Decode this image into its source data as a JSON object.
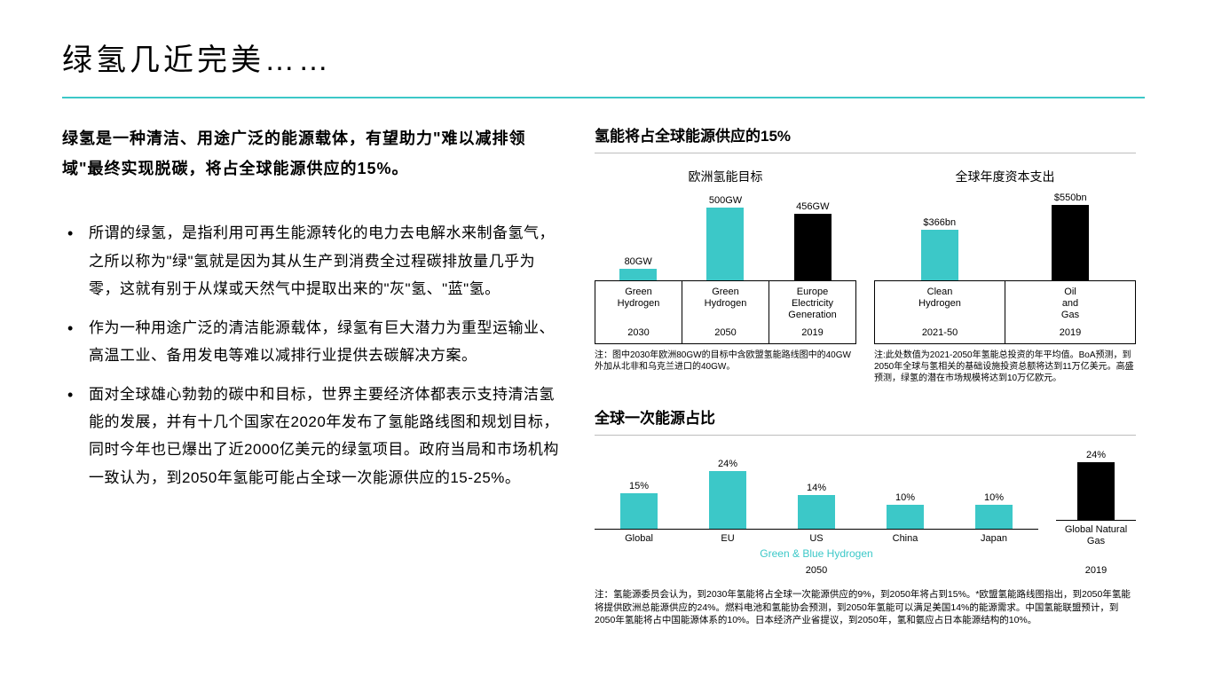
{
  "title": "绿氢几近完美……",
  "intro": "绿氢是一种清洁、用途广泛的能源载体，有望助力\"难以减排领域\"最终实现脱碳，将占全球能源供应的15%。",
  "bullets": [
    "所谓的绿氢，是指利用可再生能源转化的电力去电解水来制备氢气，之所以称为\"绿\"氢就是因为其从生产到消费全过程碳排放量几乎为零，这就有别于从煤或天然气中提取出来的\"灰\"氢、\"蓝\"氢。",
    "作为一种用途广泛的清洁能源载体，绿氢有巨大潜力为重型运输业、高温工业、备用发电等难以减排行业提供去碳解决方案。",
    "面对全球雄心勃勃的碳中和目标，世界主要经济体都表示支持清洁氢能的发展，并有十几个国家在2020年发布了氢能路线图和规划目标，同时今年也已爆出了近2000亿美元的绿氢项目。政府当局和市场机构一致认为，到2050年氢能可能占全球一次能源供应的15-25%。"
  ],
  "section1": {
    "heading": "氢能将占全球能源供应的15%"
  },
  "chart1": {
    "title": "欧洲氢能目标",
    "items": [
      {
        "label": "80GW",
        "value": 80,
        "color": "#3cc8c8",
        "cat1": "Green Hydrogen",
        "cat2": "2030"
      },
      {
        "label": "500GW",
        "value": 500,
        "color": "#3cc8c8",
        "cat1": "Green Hydrogen",
        "cat2": "2050"
      },
      {
        "label": "456GW",
        "value": 456,
        "color": "#000000",
        "cat1": "Europe Electricity Generation",
        "cat2": "2019"
      }
    ],
    "max": 550,
    "note": "注：图中2030年欧洲80GW的目标中含欧盟氢能路线图中的40GW外加从北非和乌克兰进口的40GW。"
  },
  "chart2": {
    "title": "全球年度资本支出",
    "items": [
      {
        "label": "$366bn",
        "value": 366,
        "color": "#3cc8c8",
        "cat1": "Clean Hydrogen",
        "cat2": "2021-50"
      },
      {
        "label": "$550bn",
        "value": 550,
        "color": "#000000",
        "cat1": "Oil and Gas",
        "cat2": "2019"
      }
    ],
    "max": 580,
    "note": "注:此处数值为2021-2050年氢能总投资的年平均值。BoA预测，到2050年全球与氢相关的基础设施投资总额将达到11万亿美元。高盛预测，绿氢的潜在市场规模将达到10万亿欧元。"
  },
  "section2": {
    "heading": "全球一次能源占比"
  },
  "chart3": {
    "leftItems": [
      {
        "label": "15%",
        "value": 15,
        "color": "#3cc8c8",
        "cat": "Global"
      },
      {
        "label": "24%",
        "value": 24,
        "color": "#3cc8c8",
        "cat": "EU"
      },
      {
        "label": "14%",
        "value": 14,
        "color": "#3cc8c8",
        "cat": "US"
      },
      {
        "label": "10%",
        "value": 10,
        "color": "#3cc8c8",
        "cat": "China"
      },
      {
        "label": "10%",
        "value": 10,
        "color": "#3cc8c8",
        "cat": "Japan"
      }
    ],
    "rightItem": {
      "label": "24%",
      "value": 24,
      "color": "#000000",
      "cat": "Global Natural Gas",
      "year": "2019"
    },
    "groupLabel": "Green & Blue Hydrogen",
    "groupYear": "2050",
    "max": 26
  },
  "noteBottom": "注：氢能源委员会认为，到2030年氢能将占全球一次能源供应的9%，到2050年将占到15%。*欧盟氢能路线图指出，到2050年氢能将提供欧洲总能源供应的24%。燃料电池和氢能协会预测，到2050年氢能可以满足美国14%的能源需求。中国氢能联盟预计，到2050年氢能将占中国能源体系的10%。日本经济产业省提议，到2050年，氢和氨应占日本能源结构的10%。",
  "colors": {
    "accent": "#3cc8c8",
    "black": "#000000"
  }
}
